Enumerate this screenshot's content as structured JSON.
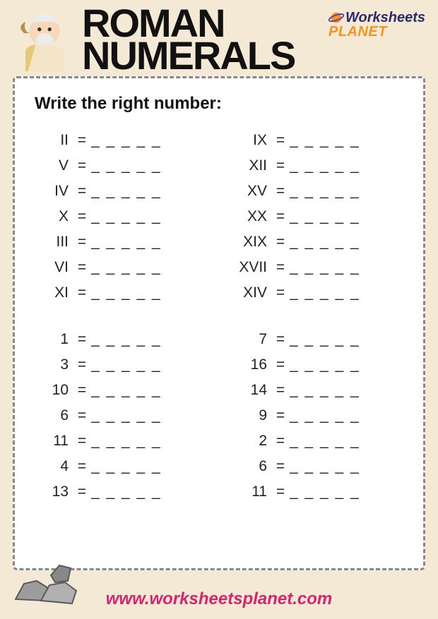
{
  "title": {
    "line1": "ROMAN",
    "line2": "NUMERALS"
  },
  "logo": {
    "line1": "Worksheets",
    "line2": "PLANET"
  },
  "instruction": "Write the right number:",
  "blank": "_ _ _ _ _",
  "eq": "=",
  "section1": {
    "left": [
      "II",
      "V",
      "IV",
      "X",
      "III",
      "VI",
      "XI"
    ],
    "right": [
      "IX",
      "XII",
      "XV",
      "XX",
      "XIX",
      "XVII",
      "XIV"
    ]
  },
  "section2": {
    "left": [
      "1",
      "3",
      "10",
      "6",
      "11",
      "4",
      "13"
    ],
    "right": [
      "7",
      "16",
      "14",
      "9",
      "2",
      "6",
      "11"
    ]
  },
  "footer_url": "www.worksheetsplanet.com",
  "colors": {
    "page_bg": "#f4e9d4",
    "sheet_bg": "#ffffff",
    "border": "#888888",
    "title": "#111111",
    "logo_top": "#2b2b6b",
    "logo_bot": "#f7931e",
    "url": "#d6246e"
  }
}
